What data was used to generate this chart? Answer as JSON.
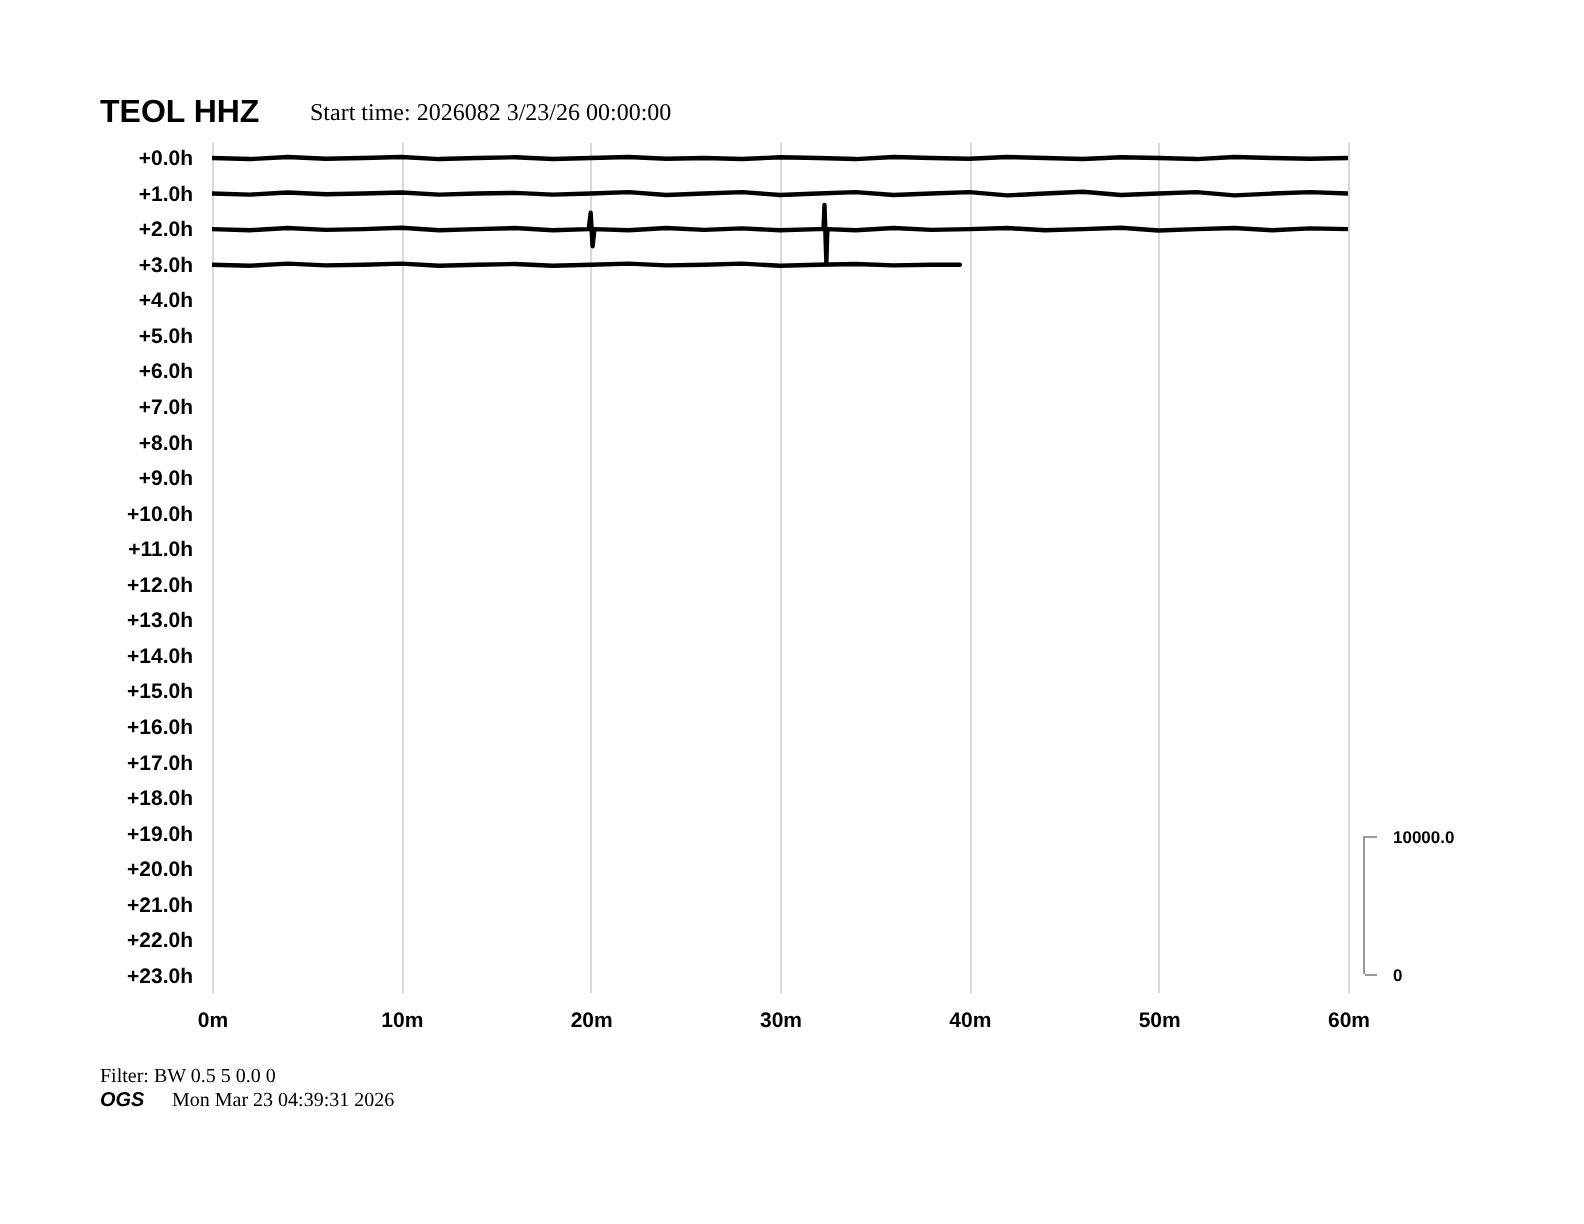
{
  "chart_data": {
    "type": "line",
    "title": "TEOL HHZ",
    "subtitle": "Start time: 2026082  3/23/26 00:00:00",
    "annotations": [
      "Filter: BW 0.5 5 0.0 0",
      "OGS",
      "Mon Mar 23 04:39:31 2026"
    ],
    "xlim": [
      0,
      60
    ],
    "xticks": [
      {
        "value": 0,
        "label": "0m"
      },
      {
        "value": 10,
        "label": "10m"
      },
      {
        "value": 20,
        "label": "20m"
      },
      {
        "value": 30,
        "label": "30m"
      },
      {
        "value": 40,
        "label": "40m"
      },
      {
        "value": 50,
        "label": "50m"
      },
      {
        "value": 60,
        "label": "60m"
      }
    ],
    "ylim": [
      23.45,
      -0.45
    ],
    "yticks": [
      {
        "value": 0,
        "label": "+0.0h"
      },
      {
        "value": 1,
        "label": "+1.0h"
      },
      {
        "value": 2,
        "label": "+2.0h"
      },
      {
        "value": 3,
        "label": "+3.0h"
      },
      {
        "value": 4,
        "label": "+4.0h"
      },
      {
        "value": 5,
        "label": "+5.0h"
      },
      {
        "value": 6,
        "label": "+6.0h"
      },
      {
        "value": 7,
        "label": "+7.0h"
      },
      {
        "value": 8,
        "label": "+8.0h"
      },
      {
        "value": 9,
        "label": "+9.0h"
      },
      {
        "value": 10,
        "label": "+10.0h"
      },
      {
        "value": 11,
        "label": "+11.0h"
      },
      {
        "value": 12,
        "label": "+12.0h"
      },
      {
        "value": 13,
        "label": "+13.0h"
      },
      {
        "value": 14,
        "label": "+14.0h"
      },
      {
        "value": 15,
        "label": "+15.0h"
      },
      {
        "value": 16,
        "label": "+16.0h"
      },
      {
        "value": 17,
        "label": "+17.0h"
      },
      {
        "value": 18,
        "label": "+18.0h"
      },
      {
        "value": 19,
        "label": "+19.0h"
      },
      {
        "value": 20,
        "label": "+20.0h"
      },
      {
        "value": 21,
        "label": "+21.0h"
      },
      {
        "value": 22,
        "label": "+22.0h"
      },
      {
        "value": 23,
        "label": "+23.0h"
      }
    ],
    "y2lim": [
      -1300,
      60300
    ],
    "y2ticks": [
      0,
      {
        "value": 10000,
        "label": "10000.0"
      }
    ],
    "grid": "x",
    "legend": false,
    "marker": "none",
    "line_style": "solid",
    "series": [
      {
        "color": "#000000",
        "x": [
          0,
          2,
          4,
          6,
          8,
          10,
          12,
          14,
          16,
          18,
          20,
          22,
          24,
          26,
          28,
          30,
          32,
          34,
          36,
          38,
          40,
          42,
          44,
          46,
          48,
          50,
          52,
          54,
          56,
          58,
          60
        ],
        "values": [
          0,
          0.03,
          -0.03,
          0.02,
          0,
          -0.03,
          0.03,
          0,
          -0.02,
          0.03,
          0,
          -0.03,
          0.02,
          0,
          0.03,
          -0.02,
          0,
          0.03,
          -0.03,
          0,
          0.02,
          -0.03,
          0,
          0.03,
          -0.02,
          0,
          0.03,
          -0.03,
          0,
          0.02,
          0
        ]
      },
      {
        "color": "#000000",
        "x": [
          0,
          2,
          4,
          6,
          8,
          10,
          12,
          14,
          16,
          18,
          20,
          22,
          24,
          26,
          28,
          30,
          32,
          34,
          36,
          38,
          40,
          42,
          44,
          46,
          48,
          50,
          52,
          54,
          56,
          58,
          60
        ],
        "values": [
          1,
          1.03,
          0.97,
          1.02,
          1,
          0.97,
          1.03,
          1,
          0.98,
          1.03,
          1,
          0.96,
          1.04,
          1,
          0.96,
          1.04,
          1,
          0.96,
          1.04,
          1,
          0.96,
          1.05,
          1,
          0.95,
          1.04,
          1,
          0.96,
          1.05,
          1,
          0.96,
          1
        ]
      },
      {
        "color": "#000000",
        "x": [
          0,
          2,
          4,
          6,
          8,
          10,
          12,
          14,
          16,
          18,
          19.9,
          20,
          20.1,
          20.2,
          22,
          24,
          26,
          28,
          30,
          32,
          32.3,
          32.35,
          32.45,
          32.5,
          34,
          36,
          38,
          40,
          42,
          44,
          46,
          48,
          50,
          52,
          54,
          56,
          58,
          60
        ],
        "values": [
          2,
          2.03,
          1.97,
          2.02,
          2,
          1.96,
          2.03,
          2,
          1.97,
          2.03,
          2,
          1.54,
          2.48,
          2,
          2.03,
          1.97,
          2.02,
          1.98,
          2.03,
          2,
          2,
          1.32,
          2.95,
          2,
          2.03,
          1.97,
          2.02,
          2,
          1.97,
          2.03,
          2,
          1.96,
          2.04,
          2,
          1.97,
          2.03,
          1.98,
          2
        ]
      },
      {
        "color": "#000000",
        "x": [
          0,
          2,
          4,
          6,
          8,
          10,
          12,
          14,
          16,
          18,
          20,
          22,
          24,
          26,
          28,
          30,
          32,
          34,
          36,
          38,
          39.5
        ],
        "values": [
          3,
          3.03,
          2.97,
          3.02,
          3,
          2.97,
          3.03,
          3,
          2.98,
          3.03,
          3,
          2.97,
          3.02,
          3,
          2.97,
          3.03,
          3,
          2.98,
          3.02,
          3,
          3
        ]
      }
    ]
  }
}
